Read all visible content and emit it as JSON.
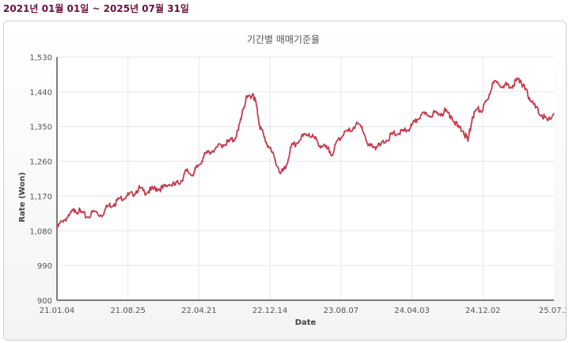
{
  "header": {
    "period_text": "2021년 01월 01일 ~ 2025년 07월 31일"
  },
  "chart_data": {
    "type": "line",
    "title": "기간별 매매기준율",
    "xlabel": "Date",
    "ylabel": "Rate (Won)",
    "ylim": [
      900,
      1530
    ],
    "yticks": [
      900,
      990,
      1080,
      1170,
      1260,
      1350,
      1440,
      1530
    ],
    "xticks": [
      "21.01.04",
      "21.08.25",
      "22.04.21",
      "22.12.14",
      "23.08.07",
      "24.04.03",
      "24.12.02",
      "25.07.3"
    ],
    "grid": true,
    "legend": "none",
    "line_color": "#c63b4e",
    "series": [
      {
        "x": [
          "2021-01-04",
          "2021-01-22",
          "2021-02-15",
          "2021-03-05",
          "2021-03-25",
          "2021-04-15",
          "2021-05-10",
          "2021-06-01",
          "2021-06-25",
          "2021-07-15",
          "2021-08-05",
          "2021-08-25",
          "2021-09-15",
          "2021-10-05",
          "2021-10-25",
          "2021-11-15",
          "2021-12-05",
          "2021-12-25",
          "2022-01-15",
          "2022-02-05",
          "2022-02-25",
          "2022-03-15",
          "2022-04-05",
          "2022-04-21",
          "2022-05-10",
          "2022-05-30",
          "2022-06-20",
          "2022-07-10",
          "2022-08-01",
          "2022-08-20",
          "2022-09-05",
          "2022-09-20",
          "2022-10-05",
          "2022-10-25",
          "2022-11-05",
          "2022-11-15",
          "2022-12-01",
          "2022-12-14",
          "2023-01-05",
          "2023-01-25",
          "2023-02-10",
          "2023-03-01",
          "2023-03-20",
          "2023-04-10",
          "2023-04-30",
          "2023-05-20",
          "2023-06-10",
          "2023-06-30",
          "2023-07-20",
          "2023-08-07",
          "2023-08-25",
          "2023-09-15",
          "2023-10-05",
          "2023-10-25",
          "2023-11-15",
          "2023-12-05",
          "2023-12-25",
          "2024-01-15",
          "2024-02-05",
          "2024-02-25",
          "2024-03-15",
          "2024-04-03",
          "2024-04-20",
          "2024-05-10",
          "2024-06-01",
          "2024-06-20",
          "2024-07-10",
          "2024-08-01",
          "2024-08-20",
          "2024-09-10",
          "2024-09-30",
          "2024-10-15",
          "2024-10-30",
          "2024-11-15",
          "2024-12-02",
          "2024-12-20",
          "2025-01-05",
          "2025-01-25",
          "2025-02-15",
          "2025-03-05",
          "2025-03-25",
          "2025-04-10",
          "2025-04-25",
          "2025-05-10",
          "2025-05-30",
          "2025-06-20",
          "2025-07-10",
          "2025-07-31"
        ],
        "y": [
          1086,
          1105,
          1120,
          1135,
          1128,
          1115,
          1130,
          1120,
          1145,
          1150,
          1165,
          1170,
          1175,
          1190,
          1180,
          1185,
          1190,
          1190,
          1200,
          1198,
          1210,
          1235,
          1225,
          1245,
          1270,
          1285,
          1292,
          1302,
          1310,
          1315,
          1340,
          1395,
          1425,
          1435,
          1405,
          1355,
          1322,
          1300,
          1268,
          1228,
          1240,
          1296,
          1306,
          1325,
          1332,
          1318,
          1300,
          1292,
          1280,
          1318,
          1330,
          1340,
          1355,
          1350,
          1300,
          1298,
          1300,
          1315,
          1330,
          1332,
          1338,
          1345,
          1362,
          1380,
          1378,
          1384,
          1382,
          1390,
          1378,
          1350,
          1338,
          1312,
          1375,
          1395,
          1390,
          1420,
          1460,
          1462,
          1458,
          1450,
          1468,
          1470,
          1445,
          1425,
          1398,
          1380,
          1365,
          1385
        ]
      }
    ]
  }
}
